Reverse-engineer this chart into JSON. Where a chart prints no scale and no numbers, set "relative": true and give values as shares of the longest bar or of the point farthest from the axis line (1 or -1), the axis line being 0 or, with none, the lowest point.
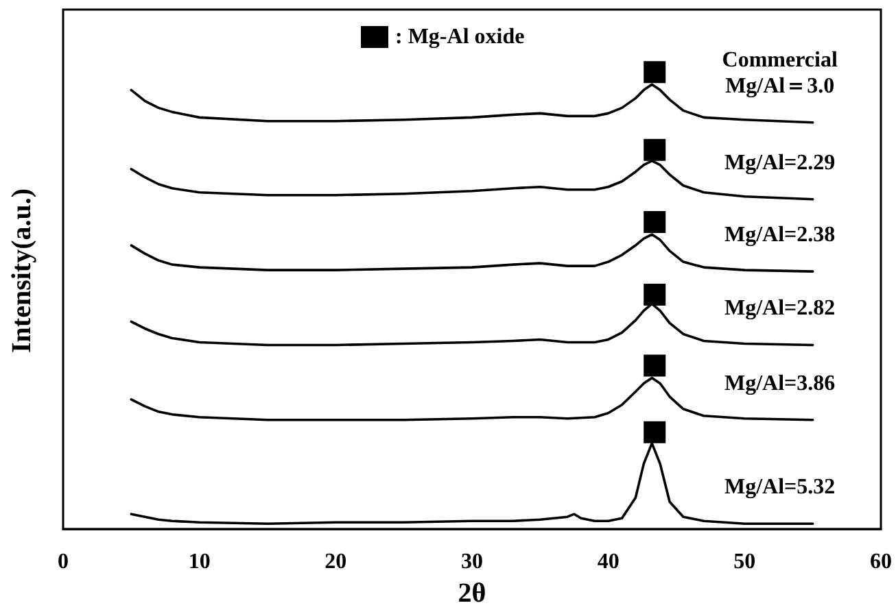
{
  "chart_data": {
    "type": "line",
    "relative": true,
    "xlabel": "2θ",
    "ylabel": "Intensity(a.u.)",
    "xlim": [
      0,
      60
    ],
    "xticks": [
      0,
      10,
      20,
      30,
      40,
      50,
      60
    ],
    "grid": false,
    "legend": "top",
    "marker": "none",
    "line_style": "solid",
    "x": [
      5,
      6,
      7,
      8,
      10,
      15,
      20,
      25,
      30,
      33,
      35,
      37,
      39,
      40,
      41,
      42,
      42.6,
      43.2,
      43.8,
      44.5,
      45.5,
      47,
      50,
      55
    ],
    "series": [
      {
        "name": "Commercial\nMg/Al＝3.0",
        "color": "#000000",
        "values": [
          0.961,
          0.937,
          0.922,
          0.913,
          0.901,
          0.893,
          0.893,
          0.896,
          0.901,
          0.907,
          0.91,
          0.904,
          0.904,
          0.91,
          0.922,
          0.943,
          0.961,
          0.973,
          0.961,
          0.94,
          0.916,
          0.901,
          0.896,
          0.89
        ]
      },
      {
        "name": "Mg/Al=2.29",
        "color": "#000000",
        "values": [
          0.788,
          0.77,
          0.755,
          0.746,
          0.737,
          0.731,
          0.731,
          0.734,
          0.74,
          0.746,
          0.749,
          0.743,
          0.743,
          0.749,
          0.761,
          0.782,
          0.797,
          0.806,
          0.797,
          0.776,
          0.752,
          0.737,
          0.728,
          0.722
        ]
      },
      {
        "name": "Mg/Al=2.38",
        "color": "#000000",
        "values": [
          0.621,
          0.603,
          0.588,
          0.579,
          0.573,
          0.567,
          0.567,
          0.57,
          0.573,
          0.579,
          0.582,
          0.576,
          0.576,
          0.585,
          0.6,
          0.621,
          0.636,
          0.645,
          0.633,
          0.609,
          0.585,
          0.573,
          0.567,
          0.564
        ]
      },
      {
        "name": "Mg/Al=2.82",
        "color": "#000000",
        "values": [
          0.454,
          0.439,
          0.427,
          0.418,
          0.409,
          0.403,
          0.403,
          0.406,
          0.409,
          0.412,
          0.415,
          0.409,
          0.409,
          0.415,
          0.43,
          0.457,
          0.478,
          0.493,
          0.478,
          0.451,
          0.427,
          0.412,
          0.406,
          0.403
        ]
      },
      {
        "name": "Mg/Al=3.86",
        "color": "#000000",
        "values": [
          0.284,
          0.269,
          0.257,
          0.251,
          0.245,
          0.239,
          0.239,
          0.239,
          0.242,
          0.245,
          0.245,
          0.242,
          0.245,
          0.254,
          0.272,
          0.301,
          0.319,
          0.331,
          0.319,
          0.29,
          0.263,
          0.248,
          0.242,
          0.239
        ]
      },
      {
        "name": "Mg/Al=5.32",
        "color": "#000000",
        "x": [
          5,
          6,
          7,
          8,
          10,
          15,
          20,
          25,
          30,
          33,
          35,
          37,
          37.5,
          38,
          39,
          40,
          41,
          42,
          42.6,
          43.2,
          43.8,
          44.5,
          45.5,
          47,
          50,
          55
        ],
        "values": [
          0.033,
          0.027,
          0.021,
          0.018,
          0.015,
          0.012,
          0.015,
          0.015,
          0.018,
          0.018,
          0.021,
          0.027,
          0.033,
          0.024,
          0.018,
          0.018,
          0.024,
          0.069,
          0.143,
          0.188,
          0.143,
          0.06,
          0.027,
          0.018,
          0.012,
          0.012
        ]
      },
      {
        "name": ": Mg-Al oxide",
        "type": "scatter",
        "marker": "square",
        "color": "#000000",
        "x": [
          43.4,
          43.4,
          43.4,
          43.4,
          43.4,
          43.4
        ],
        "values": [
          1.0,
          0.83,
          0.672,
          0.513,
          0.358,
          0.212
        ]
      }
    ]
  }
}
